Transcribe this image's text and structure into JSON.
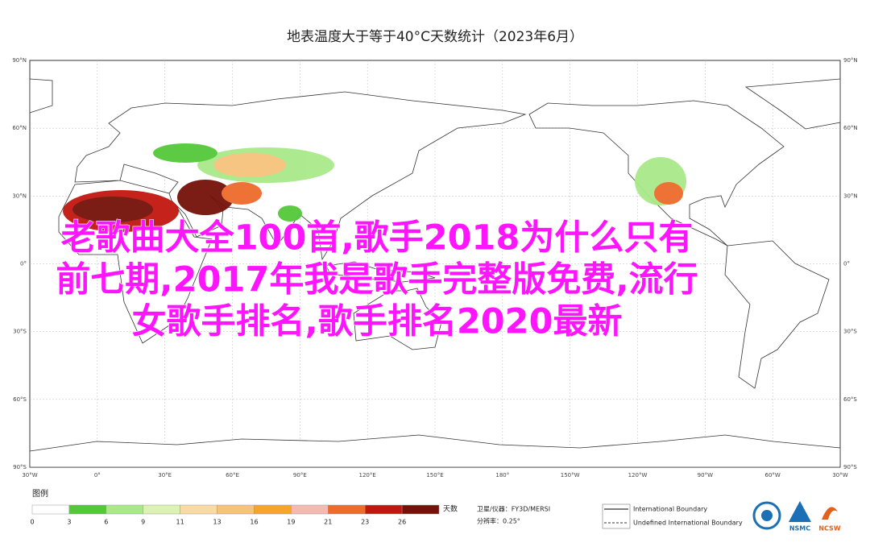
{
  "title": "地表温度大于等于40°C天数统计（2023年6月）",
  "lat_labels": [
    "90°N",
    "60°N",
    "30°N",
    "0°",
    "30°S",
    "60°S",
    "90°S"
  ],
  "lon_labels": [
    "30°W",
    "0°",
    "30°E",
    "60°E",
    "90°E",
    "120°E",
    "150°E",
    "180°",
    "150°W",
    "120°W",
    "90°W",
    "60°W",
    "30°W"
  ],
  "legend": {
    "title": "图例",
    "unit": "天数",
    "items": [
      {
        "label": "0",
        "color": "#ffffff"
      },
      {
        "label": "3",
        "color": "#55c83a"
      },
      {
        "label": "6",
        "color": "#a9e98a"
      },
      {
        "label": "9",
        "color": "#dcf2b2"
      },
      {
        "label": "11",
        "color": "#f7dba3"
      },
      {
        "label": "13",
        "color": "#f6c27c"
      },
      {
        "label": "16",
        "color": "#f3a62a"
      },
      {
        "label": "19",
        "color": "#f4b9b0"
      },
      {
        "label": "21",
        "color": "#ee6b2b"
      },
      {
        "label": "23",
        "color": "#c1170f"
      },
      {
        "label": "26",
        "color": "#741108"
      }
    ]
  },
  "satellite": "卫星/仪器：FY3D/MERSI",
  "resolution": "分辨率：0.25°",
  "boundaries": [
    "International Boundary",
    "Undefined International Boundary"
  ],
  "logos": [
    "NSMC",
    "NCSW"
  ],
  "overlay": [
    "老歌曲大全100首,歌手2018为什么只有",
    "前七期,2017年我是歌手完整版免费,流行",
    "女歌手排名,歌手排名2020最新"
  ]
}
